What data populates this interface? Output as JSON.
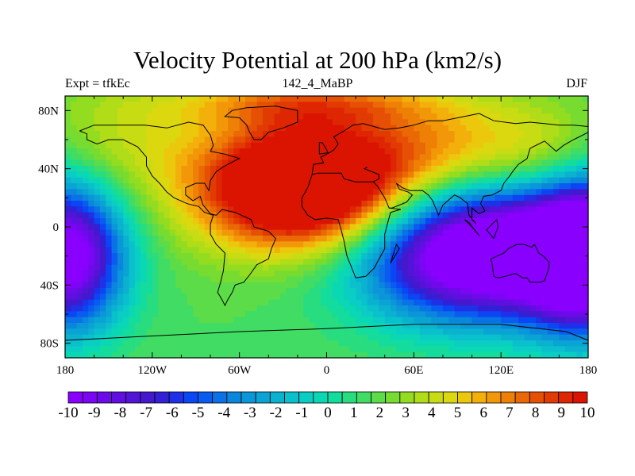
{
  "chart_data": {
    "type": "heatmap",
    "title": "Velocity Potential at 200 hPa (km2/s)",
    "subtitle_left": "Expt = tfkEc",
    "subtitle_center": "142_4_MaBP",
    "subtitle_right": "DJF",
    "xlim": [
      -180,
      180
    ],
    "ylim": [
      -90,
      90
    ],
    "x_ticks": [
      {
        "value": -180,
        "label": "180"
      },
      {
        "value": -120,
        "label": "120W"
      },
      {
        "value": -60,
        "label": "60W"
      },
      {
        "value": 0,
        "label": "0"
      },
      {
        "value": 60,
        "label": "60E"
      },
      {
        "value": 120,
        "label": "120E"
      },
      {
        "value": 180,
        "label": "180"
      }
    ],
    "y_ticks": [
      {
        "value": 80,
        "label": "80N"
      },
      {
        "value": 40,
        "label": "40N"
      },
      {
        "value": 0,
        "label": "0"
      },
      {
        "value": -40,
        "label": "40S"
      },
      {
        "value": -80,
        "label": "80S"
      }
    ],
    "colorbar": {
      "levels": [
        -10,
        -9.5,
        -9,
        -8.5,
        -8,
        -7.5,
        -7,
        -6.5,
        -6,
        -5.5,
        -5,
        -4.5,
        -4,
        -3.5,
        -3,
        -2.5,
        -2,
        -1.5,
        -1,
        -0.5,
        0,
        0.5,
        1,
        1.5,
        2,
        2.5,
        3,
        3.5,
        4,
        4.5,
        5,
        5.5,
        6,
        6.5,
        7,
        7.5,
        8,
        8.5,
        9,
        9.5,
        10
      ],
      "labels": [
        "-10",
        "-9",
        "-8",
        "-7",
        "-6",
        "-5",
        "-4",
        "-3",
        "-2",
        "-1",
        "0",
        "1",
        "2",
        "3",
        "4",
        "5",
        "6",
        "7",
        "8",
        "9",
        "10"
      ],
      "colors": [
        "#8a00ff",
        "#7c05f4",
        "#6e0aea",
        "#600fe0",
        "#5214d6",
        "#4418cc",
        "#3320d6",
        "#1e30e8",
        "#0a46f4",
        "#0a5cf0",
        "#0a72e6",
        "#0a86dc",
        "#0a96d8",
        "#0aa4d4",
        "#0ab2d0",
        "#0ac0cc",
        "#0acdc4",
        "#0ad8b4",
        "#14dc9c",
        "#28dc80",
        "#40dc64",
        "#5cdc48",
        "#78dc30",
        "#94dc20",
        "#b0dc18",
        "#c8dc14",
        "#dcd810",
        "#ecc80c",
        "#f4b00a",
        "#f29808",
        "#ee8006",
        "#ea6805",
        "#e65004",
        "#e23a03",
        "#de2602",
        "#da1401"
      ]
    },
    "field": {
      "components": [
        {
          "lon": -15,
          "lat": 28,
          "amp": 13.5,
          "sx": 50,
          "sy": 30
        },
        {
          "lon": -15,
          "lat": 85,
          "amp": 4,
          "sx": 60,
          "sy": 12
        },
        {
          "lon": 110,
          "lat": -18,
          "amp": -14,
          "sx": 60,
          "sy": 32
        },
        {
          "lon": -180,
          "lat": -20,
          "amp": -12,
          "sx": 28,
          "sy": 35
        },
        {
          "lon": 180,
          "lat": -20,
          "amp": -12,
          "sx": 28,
          "sy": 35
        },
        {
          "lon": 80,
          "lat": 55,
          "amp": 3.5,
          "sx": 45,
          "sy": 25
        },
        {
          "lon": 150,
          "lat": 50,
          "amp": 2,
          "sx": 30,
          "sy": 25
        },
        {
          "lon": -140,
          "lat": 60,
          "amp": 2,
          "sx": 40,
          "sy": 30
        }
      ]
    },
    "coastlines": [
      [
        [
          -170,
          66
        ],
        [
          -160,
          70
        ],
        [
          -140,
          70
        ],
        [
          -125,
          70
        ],
        [
          -110,
          68
        ],
        [
          -95,
          72
        ],
        [
          -85,
          70
        ],
        [
          -80,
          63
        ],
        [
          -78,
          56
        ],
        [
          -80,
          52
        ],
        [
          -70,
          50
        ],
        [
          -60,
          47
        ],
        [
          -66,
          44
        ],
        [
          -70,
          42
        ],
        [
          -76,
          38
        ],
        [
          -80,
          32
        ],
        [
          -81,
          25
        ],
        [
          -84,
          30
        ],
        [
          -90,
          30
        ],
        [
          -97,
          27
        ],
        [
          -97,
          22
        ],
        [
          -92,
          18
        ],
        [
          -87,
          21
        ],
        [
          -85,
          15
        ],
        [
          -80,
          9
        ],
        [
          -76,
          8
        ],
        [
          -72,
          12
        ],
        [
          -63,
          10
        ],
        [
          -52,
          5
        ],
        [
          -50,
          0
        ],
        [
          -40,
          -3
        ],
        [
          -35,
          -8
        ],
        [
          -38,
          -15
        ],
        [
          -40,
          -22
        ],
        [
          -48,
          -26
        ],
        [
          -53,
          -33
        ],
        [
          -57,
          -38
        ],
        [
          -63,
          -40
        ],
        [
          -65,
          -45
        ],
        [
          -68,
          -50
        ],
        [
          -70,
          -54
        ],
        [
          -72,
          -50
        ],
        [
          -75,
          -45
        ],
        [
          -73,
          -38
        ],
        [
          -71,
          -30
        ],
        [
          -70,
          -18
        ],
        [
          -76,
          -12
        ],
        [
          -80,
          -5
        ],
        [
          -80,
          2
        ],
        [
          -78,
          8
        ],
        [
          -84,
          10
        ],
        [
          -88,
          14
        ],
        [
          -96,
          16
        ],
        [
          -105,
          20
        ],
        [
          -110,
          24
        ],
        [
          -115,
          30
        ],
        [
          -120,
          35
        ],
        [
          -124,
          42
        ],
        [
          -124,
          48
        ],
        [
          -130,
          55
        ],
        [
          -140,
          60
        ],
        [
          -150,
          60
        ],
        [
          -158,
          57
        ],
        [
          -165,
          60
        ],
        [
          -165,
          64
        ],
        [
          -170,
          66
        ]
      ],
      [
        [
          -10,
          36
        ],
        [
          -6,
          37
        ],
        [
          -2,
          37
        ],
        [
          3,
          37
        ],
        [
          10,
          37
        ],
        [
          12,
          33
        ],
        [
          20,
          31
        ],
        [
          32,
          31
        ],
        [
          35,
          28
        ],
        [
          40,
          20
        ],
        [
          43,
          13
        ],
        [
          51,
          12
        ],
        [
          44,
          10
        ],
        [
          40,
          -5
        ],
        [
          40,
          -15
        ],
        [
          35,
          -24
        ],
        [
          33,
          -28
        ],
        [
          27,
          -34
        ],
        [
          20,
          -35
        ],
        [
          18,
          -30
        ],
        [
          14,
          -20
        ],
        [
          12,
          -10
        ],
        [
          10,
          -2
        ],
        [
          8,
          5
        ],
        [
          0,
          6
        ],
        [
          -8,
          5
        ],
        [
          -13,
          8
        ],
        [
          -17,
          14
        ],
        [
          -17,
          20
        ],
        [
          -13,
          27
        ],
        [
          -10,
          36
        ]
      ],
      [
        [
          -10,
          36
        ],
        [
          -9,
          43
        ],
        [
          -2,
          44
        ],
        [
          -4,
          48
        ],
        [
          2,
          51
        ],
        [
          5,
          53
        ],
        [
          8,
          57
        ],
        [
          5,
          62
        ],
        [
          12,
          66
        ],
        [
          18,
          70
        ],
        [
          25,
          71
        ],
        [
          40,
          67
        ],
        [
          50,
          68
        ],
        [
          60,
          70
        ],
        [
          70,
          73
        ],
        [
          80,
          73
        ],
        [
          95,
          76
        ],
        [
          105,
          78
        ],
        [
          115,
          73
        ],
        [
          130,
          71
        ],
        [
          140,
          72
        ],
        [
          150,
          71
        ],
        [
          160,
          70
        ],
        [
          170,
          70
        ],
        [
          180,
          69
        ]
      ],
      [
        [
          180,
          65
        ],
        [
          170,
          60
        ],
        [
          163,
          56
        ],
        [
          158,
          52
        ],
        [
          150,
          59
        ],
        [
          140,
          54
        ],
        [
          138,
          47
        ],
        [
          132,
          43
        ],
        [
          128,
          38
        ],
        [
          126,
          35
        ],
        [
          122,
          30
        ],
        [
          120,
          25
        ],
        [
          114,
          22
        ],
        [
          108,
          21
        ],
        [
          106,
          16
        ],
        [
          109,
          11
        ],
        [
          105,
          9
        ],
        [
          100,
          13
        ],
        [
          100,
          5
        ],
        [
          103,
          2
        ],
        [
          98,
          8
        ],
        [
          97,
          16
        ],
        [
          92,
          20
        ],
        [
          88,
          22
        ],
        [
          80,
          15
        ],
        [
          77,
          8
        ],
        [
          73,
          18
        ],
        [
          70,
          22
        ],
        [
          66,
          25
        ],
        [
          57,
          25
        ],
        [
          52,
          27
        ],
        [
          48,
          30
        ],
        [
          50,
          26
        ],
        [
          56,
          24
        ],
        [
          59,
          22
        ],
        [
          55,
          17
        ],
        [
          45,
          13
        ],
        [
          43,
          13
        ]
      ],
      [
        [
          28,
          41
        ],
        [
          26,
          40
        ],
        [
          36,
          36
        ],
        [
          36,
          33
        ],
        [
          32,
          31
        ]
      ],
      [
        [
          113,
          -22
        ],
        [
          114,
          -26
        ],
        [
          115,
          -34
        ],
        [
          118,
          -35
        ],
        [
          123,
          -34
        ],
        [
          130,
          -32
        ],
        [
          135,
          -35
        ],
        [
          138,
          -35
        ],
        [
          140,
          -38
        ],
        [
          147,
          -38
        ],
        [
          150,
          -37
        ],
        [
          153,
          -28
        ],
        [
          153,
          -24
        ],
        [
          149,
          -20
        ],
        [
          146,
          -18
        ],
        [
          143,
          -12
        ],
        [
          141,
          -14
        ],
        [
          136,
          -12
        ],
        [
          131,
          -12
        ],
        [
          125,
          -15
        ],
        [
          122,
          -18
        ],
        [
          113,
          -22
        ]
      ],
      [
        [
          -50,
          60
        ],
        [
          -45,
          60
        ],
        [
          -40,
          65
        ],
        [
          -30,
          68
        ],
        [
          -20,
          72
        ],
        [
          -20,
          80
        ],
        [
          -35,
          83
        ],
        [
          -55,
          82
        ],
        [
          -65,
          80
        ],
        [
          -70,
          76
        ],
        [
          -60,
          75
        ],
        [
          -55,
          70
        ],
        [
          -53,
          65
        ],
        [
          -50,
          60
        ]
      ],
      [
        [
          -5,
          50
        ],
        [
          -5,
          58
        ],
        [
          -3,
          58
        ],
        [
          0,
          53
        ],
        [
          1,
          51
        ],
        [
          -5,
          50
        ]
      ],
      [
        [
          95,
          5
        ],
        [
          100,
          0
        ],
        [
          105,
          -6
        ],
        [
          98,
          3
        ],
        [
          95,
          5
        ]
      ],
      [
        [
          110,
          -2
        ],
        [
          115,
          -8
        ],
        [
          118,
          0
        ],
        [
          117,
          5
        ],
        [
          110,
          -2
        ]
      ],
      [
        [
          44,
          -25
        ],
        [
          50,
          -15
        ],
        [
          48,
          -12
        ],
        [
          44,
          -25
        ]
      ],
      [
        [
          -180,
          -78
        ],
        [
          -120,
          -75
        ],
        [
          -60,
          -72
        ],
        [
          0,
          -70
        ],
        [
          60,
          -67
        ],
        [
          120,
          -67
        ],
        [
          165,
          -72
        ],
        [
          180,
          -78
        ]
      ]
    ]
  }
}
